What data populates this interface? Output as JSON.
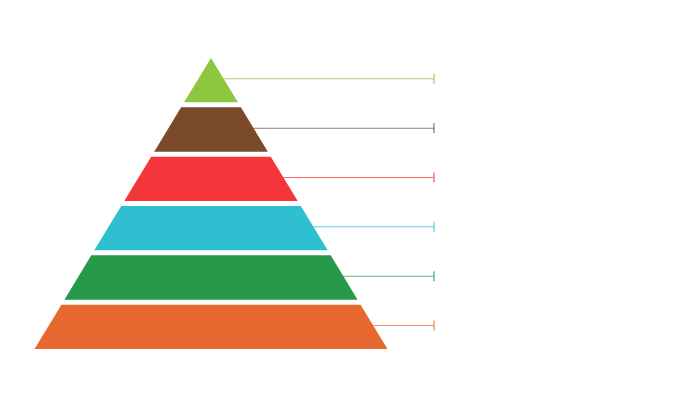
{
  "diagram": {
    "type": "pyramid",
    "levels": [
      {
        "color": "#8dc63f"
      },
      {
        "color": "#7a4a2a"
      },
      {
        "color": "#f43539"
      },
      {
        "color": "#2ec0d0"
      },
      {
        "color": "#27994a"
      },
      {
        "color": "#e8692f"
      }
    ]
  }
}
